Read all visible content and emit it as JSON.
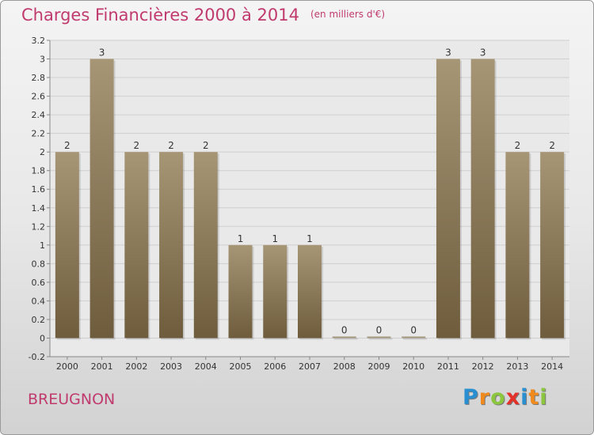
{
  "header": {
    "title": "Charges Financières 2000 à 2014",
    "unit_note": "(en milliers d'€)"
  },
  "footer": {
    "commune": "BREUGNON",
    "brand_letters": [
      "P",
      "r",
      "o",
      "x",
      "i",
      "t",
      "i"
    ],
    "brand_colors": [
      "#2a8fd0",
      "#f08a1c",
      "#8cc63e",
      "#e4322b",
      "#2a8fd0",
      "#f08a1c",
      "#8cc63e"
    ]
  },
  "colors": {
    "accent": "#c03a6e",
    "bar_top": "#a69676",
    "bar_bottom": "#6e5c3d",
    "grid": "#cfcfcf",
    "plot_bg": "#e9e9e9"
  },
  "chart_data": {
    "type": "bar",
    "title": "Charges Financières 2000 à 2014",
    "subtitle": "(en milliers d'€)",
    "categories": [
      "2000",
      "2001",
      "2002",
      "2003",
      "2004",
      "2005",
      "2006",
      "2007",
      "2008",
      "2009",
      "2010",
      "2011",
      "2012",
      "2013",
      "2014"
    ],
    "values": [
      2,
      3,
      2,
      2,
      2,
      1,
      1,
      1,
      0,
      0,
      0,
      3,
      3,
      2,
      2
    ],
    "data_labels": [
      "2",
      "3",
      "2",
      "2",
      "2",
      "1",
      "1",
      "1",
      "0",
      "0",
      "0",
      "3",
      "3",
      "2",
      "2"
    ],
    "ylim": [
      -0.2,
      3.2
    ],
    "yticks": [
      "-0.2",
      "0",
      "0.2",
      "0.4",
      "0.6",
      "0.8",
      "1",
      "1.2",
      "1.4",
      "1.6",
      "1.8",
      "2",
      "2.2",
      "2.4",
      "2.6",
      "2.8",
      "3",
      "3.2"
    ],
    "xlabel": "",
    "ylabel": "",
    "grid": "horizontal",
    "legend": "none"
  }
}
